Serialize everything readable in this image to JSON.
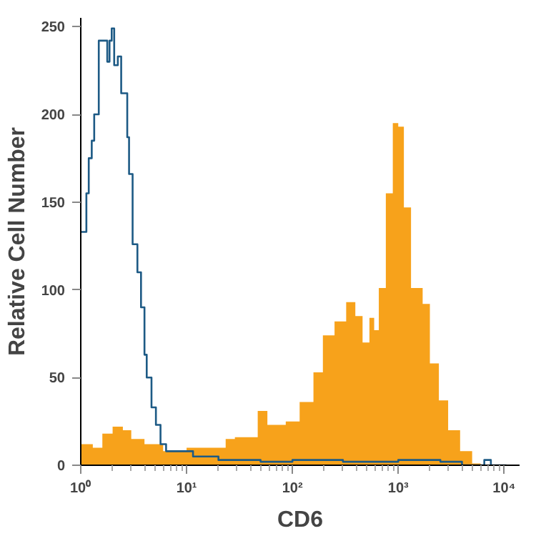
{
  "chart_data": {
    "type": "area",
    "xlabel": "CD6",
    "ylabel": "Relative Cell Number",
    "log": "x",
    "grid": false,
    "xlim": [
      1,
      14000
    ],
    "ylim": [
      0,
      255
    ],
    "xticks": [
      {
        "value": 1,
        "label": "10⁰"
      },
      {
        "value": 10,
        "label": "10¹"
      },
      {
        "value": 100,
        "label": "10²"
      },
      {
        "value": 1000,
        "label": "10³"
      },
      {
        "value": 10000,
        "label": "10⁴"
      }
    ],
    "yticks": [
      0,
      50,
      100,
      150,
      200,
      250
    ],
    "series": [
      {
        "color": "#f7a21b",
        "x": [
          1,
          1.3,
          1.6,
          2.0,
          2.5,
          3,
          4,
          6,
          10,
          20,
          23.4,
          28.6,
          47,
          58,
          86.5,
          117,
          158,
          194,
          250,
          322,
          393,
          460,
          534,
          592,
          655,
          763,
          888,
          1000,
          1130,
          1320,
          1700,
          1990,
          2420,
          2960,
          3840,
          4990,
          6000
        ],
        "values": [
          12,
          10,
          18,
          22,
          20,
          15,
          12,
          8,
          10,
          10,
          15,
          16,
          31,
          23,
          25,
          36,
          53,
          74,
          82,
          93,
          85,
          70,
          84,
          77,
          101,
          155,
          195,
          193,
          147,
          101,
          92,
          58,
          37,
          20,
          8,
          1,
          0
        ]
      },
      {
        "type": "step",
        "color": "#1d5a85",
        "x": [
          1,
          1.13,
          1.19,
          1.27,
          1.34,
          1.48,
          1.67,
          1.78,
          1.87,
          1.96,
          2.07,
          2.24,
          2.41,
          2.75,
          2.86,
          3.09,
          3.43,
          3.71,
          4.0,
          4.2,
          4.66,
          5.13,
          5.67,
          6.4,
          11.5,
          20,
          50,
          100,
          300,
          1000,
          2500,
          4000,
          6500,
          7500,
          10500
        ],
        "values": [
          133,
          155,
          175,
          185,
          200,
          242,
          242,
          230,
          242,
          249,
          228,
          233,
          212,
          187,
          166,
          126,
          110,
          90,
          63,
          50,
          33,
          23,
          12,
          8,
          5,
          3,
          2,
          3,
          2,
          3,
          2,
          0,
          3,
          0,
          0
        ]
      }
    ]
  }
}
